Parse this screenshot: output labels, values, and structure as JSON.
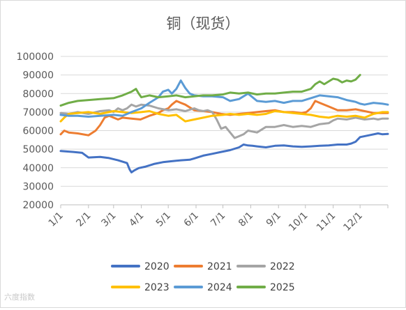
{
  "chart_data": {
    "type": "line",
    "title": "铜（现货）",
    "xlabel": "",
    "ylabel": "",
    "ylim": [
      20000,
      100000
    ],
    "yticks": [
      20000,
      30000,
      40000,
      50000,
      60000,
      70000,
      80000,
      90000,
      100000
    ],
    "ytick_labels": [
      "20000",
      "30000",
      "40000",
      "50000",
      "60000",
      "70000",
      "80000",
      "90000",
      "100000"
    ],
    "xlim": [
      1,
      366
    ],
    "x_tick_labels": [
      "1/1",
      "2/1",
      "3/1",
      "4/1",
      "5/1",
      "6/1",
      "7/1",
      "8/1",
      "9/1",
      "10/1",
      "11/1",
      "12/1"
    ],
    "x_tick_days": [
      1,
      32,
      60,
      91,
      121,
      152,
      182,
      213,
      244,
      274,
      305,
      335
    ],
    "grid": true,
    "legend": "bottom",
    "series": [
      {
        "name": "2020",
        "color": "#4472C4",
        "x": [
          1,
          15,
          25,
          32,
          45,
          55,
          65,
          75,
          78,
          80,
          83,
          88,
          95,
          105,
          115,
          125,
          135,
          145,
          150,
          160,
          170,
          180,
          190,
          200,
          205,
          210,
          215,
          220,
          230,
          240,
          250,
          260,
          270,
          280,
          290,
          300,
          310,
          320,
          325,
          330,
          335,
          345,
          355,
          360,
          366
        ],
        "y": [
          49000,
          48500,
          48000,
          45500,
          45800,
          45200,
          44000,
          42500,
          39000,
          37500,
          38500,
          39800,
          40500,
          42000,
          43000,
          43500,
          44000,
          44300,
          45000,
          46500,
          47500,
          48500,
          49500,
          51000,
          52500,
          52000,
          51800,
          51500,
          51000,
          51800,
          52000,
          51500,
          51300,
          51500,
          51800,
          52000,
          52500,
          52500,
          53000,
          54000,
          56500,
          57500,
          58500,
          58000,
          58200
        ]
      },
      {
        "name": "2021",
        "color": "#ED7D31",
        "x": [
          1,
          5,
          10,
          20,
          32,
          40,
          45,
          50,
          55,
          60,
          65,
          70,
          80,
          90,
          100,
          110,
          115,
          121,
          125,
          130,
          135,
          140,
          145,
          150,
          160,
          170,
          180,
          190,
          200,
          210,
          220,
          230,
          240,
          250,
          260,
          270,
          275,
          280,
          285,
          290,
          300,
          310,
          320,
          330,
          340,
          350,
          366
        ],
        "y": [
          58000,
          60000,
          59000,
          58500,
          57500,
          60000,
          63000,
          67000,
          68000,
          67000,
          66000,
          67000,
          66500,
          66000,
          68000,
          69500,
          71000,
          72000,
          74000,
          76000,
          75000,
          74000,
          72500,
          71000,
          70500,
          70000,
          69000,
          68500,
          69000,
          69500,
          70000,
          70500,
          71000,
          70000,
          70000,
          69500,
          70000,
          72000,
          76000,
          75000,
          73000,
          71000,
          71000,
          71500,
          70500,
          69500,
          69500
        ]
      },
      {
        "name": "2022",
        "color": "#A5A5A5",
        "x": [
          1,
          10,
          20,
          32,
          45,
          55,
          60,
          65,
          70,
          75,
          80,
          85,
          91,
          100,
          110,
          121,
          130,
          140,
          150,
          155,
          160,
          165,
          170,
          175,
          180,
          185,
          190,
          195,
          200,
          205,
          210,
          220,
          230,
          240,
          250,
          260,
          270,
          280,
          290,
          300,
          305,
          310,
          320,
          330,
          340,
          350,
          355,
          360,
          366
        ],
        "y": [
          69500,
          69000,
          70000,
          69000,
          70500,
          71000,
          70000,
          72000,
          71000,
          72000,
          74000,
          73000,
          74000,
          73500,
          72000,
          71000,
          71500,
          70500,
          72000,
          71000,
          70500,
          71000,
          70000,
          66000,
          61000,
          62000,
          59000,
          56000,
          57000,
          58000,
          60000,
          59000,
          62000,
          62000,
          63000,
          62000,
          62500,
          62000,
          63500,
          64000,
          65500,
          66500,
          66000,
          67000,
          66000,
          66500,
          66000,
          66500,
          66500
        ]
      },
      {
        "name": "2023",
        "color": "#FFC000",
        "x": [
          1,
          5,
          10,
          20,
          32,
          45,
          60,
          70,
          80,
          91,
          100,
          110,
          121,
          130,
          140,
          150,
          160,
          170,
          182,
          190,
          200,
          210,
          220,
          230,
          240,
          250,
          260,
          270,
          280,
          290,
          300,
          310,
          320,
          330,
          340,
          350,
          360,
          366
        ],
        "y": [
          65000,
          67000,
          69000,
          69500,
          70000,
          69000,
          70500,
          70000,
          69500,
          70000,
          70500,
          69000,
          68000,
          68500,
          65000,
          66000,
          67000,
          68000,
          68500,
          69000,
          68500,
          69000,
          68500,
          69000,
          70500,
          70000,
          69500,
          69000,
          68500,
          67500,
          67000,
          68000,
          67500,
          68000,
          67000,
          69000,
          70000,
          70000
        ]
      },
      {
        "name": "2024",
        "color": "#5B9BD5",
        "x": [
          1,
          10,
          20,
          32,
          45,
          60,
          70,
          80,
          91,
          100,
          110,
          115,
          121,
          125,
          130,
          135,
          140,
          145,
          150,
          160,
          170,
          182,
          190,
          200,
          210,
          220,
          230,
          240,
          250,
          260,
          270,
          280,
          290,
          300,
          310,
          320,
          330,
          335,
          340,
          350,
          360,
          366
        ],
        "y": [
          68500,
          68000,
          68000,
          67500,
          68000,
          68500,
          68000,
          70000,
          72000,
          75000,
          78000,
          81000,
          82000,
          80000,
          82500,
          87000,
          83000,
          80000,
          79000,
          78500,
          78500,
          78000,
          76000,
          77000,
          80000,
          76000,
          75500,
          76000,
          75000,
          76000,
          76000,
          77500,
          79000,
          78500,
          78000,
          76500,
          75500,
          74500,
          74000,
          75000,
          74500,
          74000
        ]
      },
      {
        "name": "2025",
        "color": "#70AD47",
        "x": [
          1,
          10,
          20,
          32,
          45,
          60,
          70,
          80,
          85,
          88,
          91,
          100,
          110,
          121,
          130,
          140,
          150,
          160,
          170,
          182,
          190,
          200,
          210,
          220,
          230,
          240,
          250,
          260,
          270,
          280,
          285,
          290,
          295,
          300,
          305,
          310,
          315,
          320,
          325,
          330,
          335
        ],
        "y": [
          73500,
          75000,
          76000,
          76500,
          77000,
          77500,
          79000,
          81000,
          82500,
          80000,
          78000,
          79000,
          78000,
          78500,
          79000,
          78000,
          78500,
          79000,
          79000,
          79500,
          80500,
          80000,
          80500,
          79500,
          80000,
          80000,
          80500,
          81000,
          81000,
          82500,
          85000,
          86500,
          85000,
          86500,
          88000,
          87500,
          86000,
          87000,
          86500,
          87500,
          90000
        ]
      }
    ]
  },
  "watermark": "六度指数"
}
